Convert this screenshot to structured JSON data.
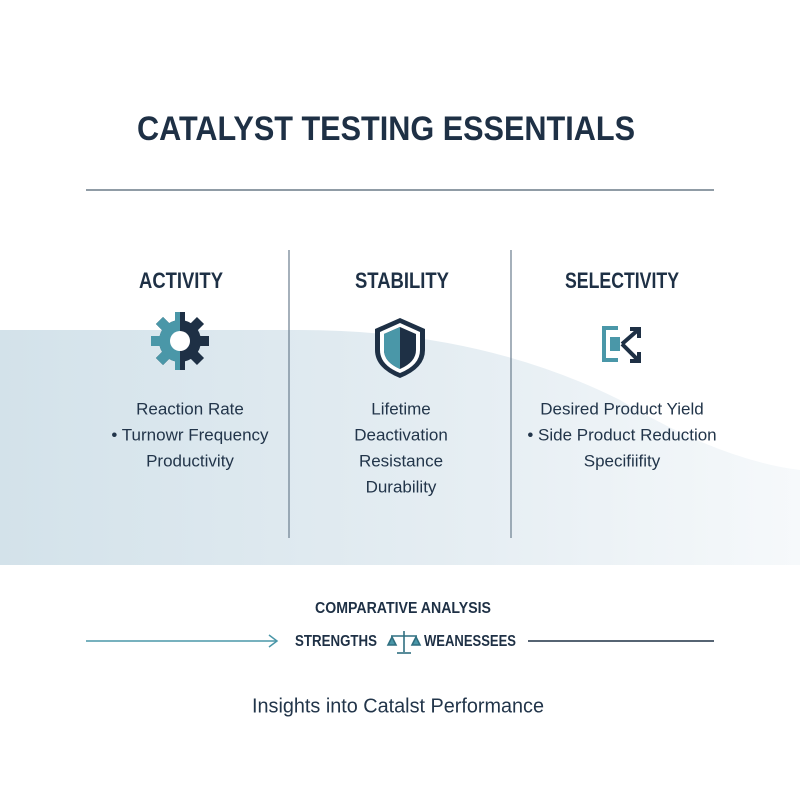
{
  "title": "CATALYST TESTING ESSENTIALS",
  "columns": [
    {
      "heading": "ACTIVITY",
      "items": [
        "Reaction Rate",
        "• Turnowr Frequency",
        "Productivity"
      ]
    },
    {
      "heading": "STABILITY",
      "items": [
        "Lifetime",
        "Deactivation",
        "Resistance",
        "Durability"
      ]
    },
    {
      "heading": "SELECTIVITY",
      "items": [
        "Desired Product Yield",
        "• Side Product Reduction",
        "Specifiifity"
      ]
    }
  ],
  "comparison": {
    "label": "COMPARATIVE ANALYSIS",
    "left": "STRENGTHS",
    "right": "WEANESSEES"
  },
  "footer": "Insights into Catalst Performance"
}
